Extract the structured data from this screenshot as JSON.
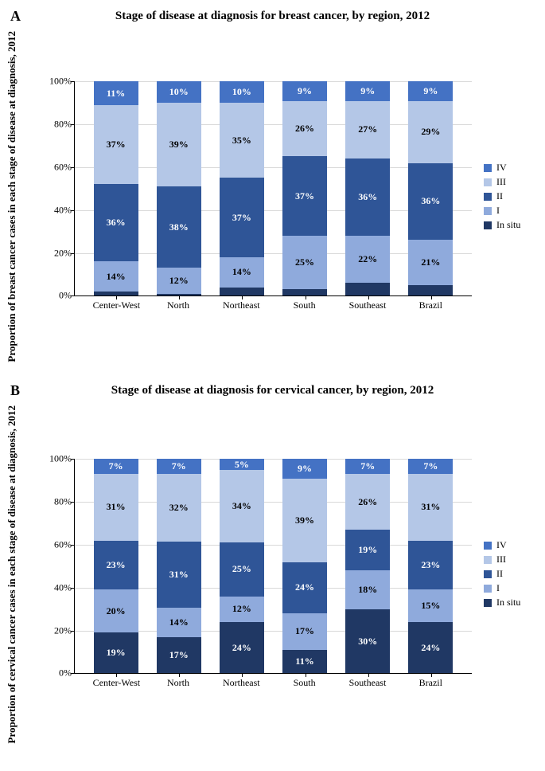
{
  "colors": {
    "in_situ": "#203864",
    "I": "#8faadc",
    "II": "#2f5597",
    "III": "#b4c7e7",
    "IV": "#4472c4",
    "grid": "#d9d9d9",
    "bg": "#ffffff"
  },
  "legend_order": [
    "IV",
    "III",
    "II",
    "I",
    "In situ"
  ],
  "stack_order": [
    "In situ",
    "I",
    "II",
    "III",
    "IV"
  ],
  "seg_text_class": {
    "In situ": "dark",
    "I": "light",
    "II": "dark",
    "III": "light",
    "IV": "dark"
  },
  "yaxis": {
    "min": 0,
    "max": 100,
    "step": 20,
    "suffix": "%"
  },
  "panels": [
    {
      "letter": "A",
      "title": "Stage of disease at diagnosis for breast cancer, by region, 2012",
      "ylabel": "Proportion of breast cancer cases in each stage of disease at diagnosis, 2012",
      "bars": [
        {
          "cat": "Center-West",
          "vals": {
            "In situ": 2,
            "I": 14,
            "II": 36,
            "III": 37,
            "IV": 11
          },
          "labels": {
            "In situ": null,
            "I": "14%",
            "II": "36%",
            "III": "37%",
            "IV": "11%"
          }
        },
        {
          "cat": "North",
          "vals": {
            "In situ": 1,
            "I": 12,
            "II": 38,
            "III": 39,
            "IV": 10
          },
          "labels": {
            "In situ": null,
            "I": "12%",
            "II": "38%",
            "III": "39%",
            "IV": "10%"
          }
        },
        {
          "cat": "Northeast",
          "vals": {
            "In situ": 4,
            "I": 14,
            "II": 37,
            "III": 35,
            "IV": 10
          },
          "labels": {
            "In situ": null,
            "I": "14%",
            "II": "37%",
            "III": "35%",
            "IV": "10%"
          }
        },
        {
          "cat": "South",
          "vals": {
            "In situ": 3,
            "I": 25,
            "II": 37,
            "III": 26,
            "IV": 9
          },
          "labels": {
            "In situ": null,
            "I": "25%",
            "II": "37%",
            "III": "26%",
            "IV": "9%"
          }
        },
        {
          "cat": "Southeast",
          "vals": {
            "In situ": 6,
            "I": 22,
            "II": 36,
            "III": 27,
            "IV": 9
          },
          "labels": {
            "In situ": null,
            "I": "22%",
            "II": "36%",
            "III": "27%",
            "IV": "9%"
          }
        },
        {
          "cat": "Brazil",
          "vals": {
            "In situ": 5,
            "I": 21,
            "II": 36,
            "III": 29,
            "IV": 9
          },
          "labels": {
            "In situ": null,
            "I": "21%",
            "II": "36%",
            "III": "29%",
            "IV": "9%"
          }
        }
      ]
    },
    {
      "letter": "B",
      "title": "Stage of disease at diagnosis for cervical cancer, by region, 2012",
      "ylabel": "Proportion of cervical cancer cases in each stage of disease at diagnosis, 2012",
      "bars": [
        {
          "cat": "Center-West",
          "vals": {
            "In situ": 19,
            "I": 20,
            "II": 23,
            "III": 31,
            "IV": 7
          },
          "labels": {
            "In situ": "19%",
            "I": "20%",
            "II": "23%",
            "III": "31%",
            "IV": "7%"
          }
        },
        {
          "cat": "North",
          "vals": {
            "In situ": 17,
            "I": 14,
            "II": 31,
            "III": 32,
            "IV": 7
          },
          "labels": {
            "In situ": "17%",
            "I": "14%",
            "II": "31%",
            "III": "32%",
            "IV": "7%"
          }
        },
        {
          "cat": "Northeast",
          "vals": {
            "In situ": 24,
            "I": 12,
            "II": 25,
            "III": 34,
            "IV": 5
          },
          "labels": {
            "In situ": "24%",
            "I": "12%",
            "II": "25%",
            "III": "34%",
            "IV": "5%"
          }
        },
        {
          "cat": "South",
          "vals": {
            "In situ": 11,
            "I": 17,
            "II": 24,
            "III": 39,
            "IV": 9
          },
          "labels": {
            "In situ": "11%",
            "I": "17%",
            "II": "24%",
            "III": "39%",
            "IV": "9%"
          }
        },
        {
          "cat": "Southeast",
          "vals": {
            "In situ": 30,
            "I": 18,
            "II": 19,
            "III": 26,
            "IV": 7
          },
          "labels": {
            "In situ": "30%",
            "I": "18%",
            "II": "19%",
            "III": "26%",
            "IV": "7%"
          }
        },
        {
          "cat": "Brazil",
          "vals": {
            "In situ": 24,
            "I": 15,
            "II": 23,
            "III": 31,
            "IV": 7
          },
          "labels": {
            "In situ": "24%",
            "I": "15%",
            "II": "23%",
            "III": "31%",
            "IV": "7%"
          }
        }
      ]
    }
  ]
}
